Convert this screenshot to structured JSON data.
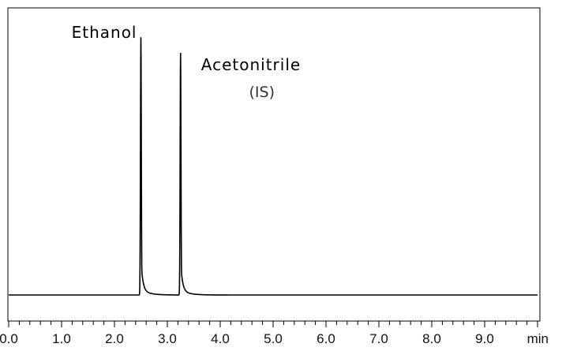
{
  "chart_data": {
    "type": "line",
    "x_unit": "min",
    "xlim": [
      0.0,
      10.0
    ],
    "x_ticks": [
      "0.0",
      "1.0",
      "2.0",
      "3.0",
      "4.0",
      "5.0",
      "6.0",
      "7.0",
      "8.0",
      "9.0"
    ],
    "baseline": 0,
    "ylim": [
      -0.1,
      1.0
    ],
    "peaks": [
      {
        "name": "Ethanol",
        "sublabel": "",
        "retention_time": 2.5,
        "relative_height": 0.99
      },
      {
        "name": "Acetonitrile",
        "sublabel": "(IS)",
        "retention_time": 3.25,
        "relative_height": 0.93
      }
    ],
    "grid": false,
    "line_color": "#000000"
  }
}
